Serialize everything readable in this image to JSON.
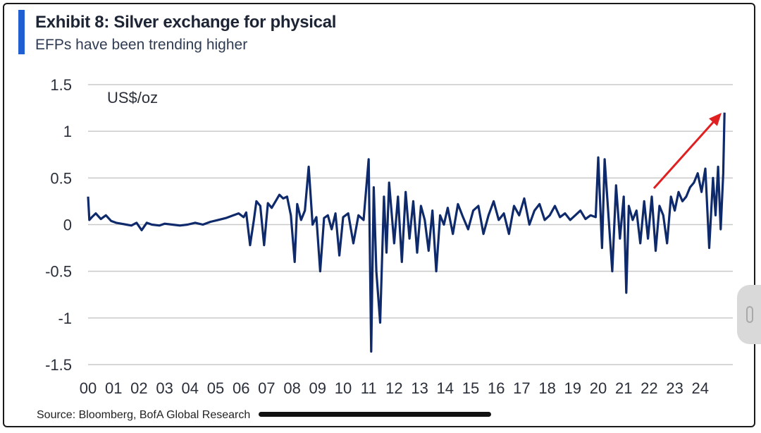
{
  "header": {
    "title": "Exhibit 8: Silver exchange for physical",
    "subtitle": "EFPs have been trending higher"
  },
  "footer": {
    "source": "Source: Bloomberg, BofA Global Research"
  },
  "colors": {
    "series": "#0f2a6b",
    "accent": "#1f5fd1",
    "arrow": "#e02020",
    "grid": "#c9c9c9"
  },
  "chart_data": {
    "type": "line",
    "title": "Exhibit 8: Silver exchange for physical",
    "subtitle": "EFPs have been trending higher",
    "unit_label": "US$/oz",
    "xlabel": "",
    "ylabel": "",
    "xlim": [
      2000,
      2025
    ],
    "ylim": [
      -1.5,
      1.5
    ],
    "yticks": [
      1.5,
      1,
      0.5,
      0,
      -0.5,
      -1,
      -1.5
    ],
    "ytick_labels": [
      "1.5",
      "1",
      "0.5",
      "0",
      "-0.5",
      "-1",
      "-1.5"
    ],
    "xtick_labels": [
      "00",
      "01",
      "02",
      "03",
      "04",
      "05",
      "06",
      "07",
      "08",
      "09",
      "10",
      "11",
      "12",
      "13",
      "14",
      "15",
      "16",
      "17",
      "18",
      "19",
      "20",
      "21",
      "22",
      "23",
      "24"
    ],
    "grid": "horizontal",
    "legend": "none",
    "annotation": "arrow pointing to recent upward trend",
    "series": [
      {
        "x": [
          2000.0,
          2000.05,
          2000.15,
          2000.3,
          2000.5,
          2000.7,
          2000.9,
          2001.1,
          2001.3,
          2001.5,
          2001.7,
          2001.9,
          2002.1,
          2002.3,
          2002.5,
          2002.8,
          2003.0,
          2003.3,
          2003.6,
          2003.9,
          2004.2,
          2004.5,
          2004.8,
          2005.1,
          2005.4,
          2005.7,
          2005.9,
          2006.1,
          2006.2,
          2006.35,
          2006.5,
          2006.6,
          2006.75,
          2006.9,
          2007.05,
          2007.2,
          2007.35,
          2007.5,
          2007.65,
          2007.8,
          2007.95,
          2008.1,
          2008.2,
          2008.35,
          2008.5,
          2008.65,
          2008.8,
          2008.95,
          2009.1,
          2009.25,
          2009.4,
          2009.55,
          2009.7,
          2009.85,
          2010.0,
          2010.2,
          2010.4,
          2010.6,
          2010.8,
          2011.0,
          2011.1,
          2011.2,
          2011.3,
          2011.45,
          2011.6,
          2011.7,
          2011.8,
          2012.0,
          2012.15,
          2012.3,
          2012.45,
          2012.6,
          2012.75,
          2012.9,
          2013.05,
          2013.2,
          2013.35,
          2013.5,
          2013.65,
          2013.8,
          2013.95,
          2014.1,
          2014.3,
          2014.5,
          2014.7,
          2014.9,
          2015.1,
          2015.3,
          2015.5,
          2015.7,
          2015.9,
          2016.1,
          2016.3,
          2016.5,
          2016.7,
          2016.9,
          2017.1,
          2017.3,
          2017.5,
          2017.7,
          2017.9,
          2018.1,
          2018.3,
          2018.5,
          2018.7,
          2018.9,
          2019.1,
          2019.3,
          2019.5,
          2019.7,
          2019.9,
          2020.0,
          2020.15,
          2020.25,
          2020.4,
          2020.55,
          2020.7,
          2020.85,
          2021.0,
          2021.1,
          2021.2,
          2021.35,
          2021.5,
          2021.65,
          2021.8,
          2021.95,
          2022.1,
          2022.25,
          2022.4,
          2022.55,
          2022.7,
          2022.85,
          2023.0,
          2023.15,
          2023.3,
          2023.45,
          2023.6,
          2023.75,
          2023.9,
          2024.05,
          2024.2,
          2024.35,
          2024.5,
          2024.6,
          2024.7,
          2024.8,
          2024.9,
          2024.95
        ],
        "y": [
          0.3,
          0.05,
          0.08,
          0.12,
          0.06,
          0.1,
          0.04,
          0.02,
          0.01,
          0.0,
          -0.01,
          0.02,
          -0.06,
          0.02,
          0.0,
          -0.01,
          0.01,
          0.0,
          -0.01,
          0.0,
          0.02,
          0.0,
          0.03,
          0.05,
          0.07,
          0.1,
          0.12,
          0.08,
          0.13,
          -0.22,
          0.05,
          0.25,
          0.2,
          -0.22,
          0.23,
          0.18,
          0.25,
          0.32,
          0.28,
          0.3,
          0.1,
          -0.4,
          0.22,
          0.05,
          0.15,
          0.62,
          0.0,
          0.08,
          -0.5,
          0.07,
          0.1,
          -0.05,
          0.12,
          -0.33,
          0.08,
          0.12,
          -0.2,
          0.1,
          0.05,
          0.7,
          -1.36,
          0.4,
          -0.5,
          -1.05,
          0.3,
          -0.3,
          0.45,
          -0.2,
          0.3,
          -0.4,
          0.35,
          -0.15,
          0.25,
          -0.3,
          0.2,
          0.05,
          -0.28,
          0.15,
          -0.5,
          0.1,
          0.0,
          0.18,
          -0.1,
          0.22,
          0.08,
          -0.05,
          0.15,
          0.2,
          -0.1,
          0.1,
          0.25,
          0.05,
          0.12,
          -0.1,
          0.2,
          0.1,
          0.28,
          0.0,
          0.15,
          0.22,
          0.05,
          0.1,
          0.2,
          0.08,
          0.12,
          0.05,
          0.1,
          0.15,
          0.06,
          0.1,
          0.08,
          0.72,
          -0.25,
          0.7,
          0.1,
          -0.5,
          0.42,
          -0.15,
          0.3,
          -0.73,
          0.2,
          0.05,
          0.15,
          -0.2,
          0.25,
          -0.15,
          0.3,
          -0.28,
          0.2,
          0.1,
          -0.2,
          0.3,
          0.15,
          0.35,
          0.25,
          0.3,
          0.4,
          0.45,
          0.55,
          0.35,
          0.6,
          -0.25,
          0.5,
          0.1,
          0.62,
          -0.05,
          0.55,
          1.2
        ]
      }
    ]
  }
}
